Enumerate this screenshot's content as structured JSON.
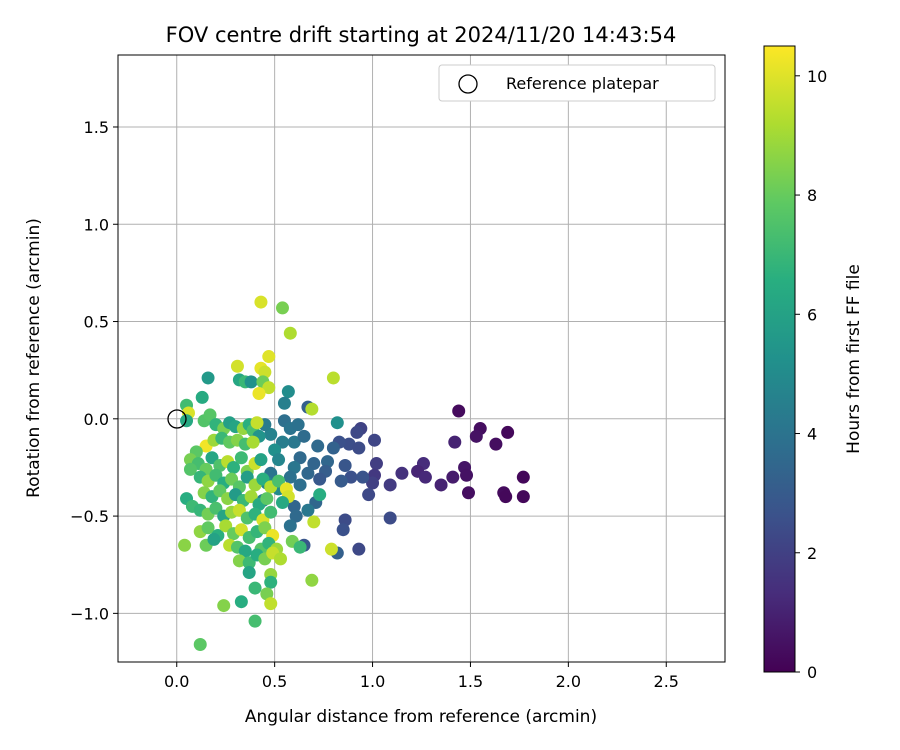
{
  "chart_data": {
    "type": "scatter",
    "title": "FOV centre drift starting at 2024/11/20 14:43:54",
    "xlabel": "Angular distance from reference (arcmin)",
    "ylabel": "Rotation from reference (arcmin)",
    "xlim": [
      -0.3,
      2.8
    ],
    "ylim": [
      -1.25,
      1.87
    ],
    "xticks": [
      0.0,
      0.5,
      1.0,
      1.5,
      2.0,
      2.5
    ],
    "xtick_labels": [
      "0.0",
      "0.5",
      "1.0",
      "1.5",
      "2.0",
      "2.5"
    ],
    "yticks": [
      -1.0,
      -0.5,
      0.0,
      0.5,
      1.0,
      1.5
    ],
    "ytick_labels": [
      "−1.0",
      "−0.5",
      "0.0",
      "0.5",
      "1.0",
      "1.5"
    ],
    "grid": true,
    "legend": {
      "position": "top-right",
      "entries": [
        "Reference platepar"
      ]
    },
    "reference_point": {
      "x": 0.0,
      "y": 0.0,
      "label": "Reference platepar"
    },
    "colorbar": {
      "label": "Hours from first FF file",
      "colormap": "viridis",
      "range": [
        0,
        10.5
      ],
      "ticks": [
        0,
        2,
        4,
        6,
        8,
        10
      ],
      "tick_labels": [
        "0",
        "2",
        "4",
        "6",
        "8",
        "10"
      ]
    },
    "points": [
      {
        "x": 1.44,
        "y": 0.04,
        "c": 0.3
      },
      {
        "x": 1.55,
        "y": -0.05,
        "c": 0.4
      },
      {
        "x": 1.53,
        "y": -0.09,
        "c": 0.5
      },
      {
        "x": 1.69,
        "y": -0.07,
        "c": 0.2
      },
      {
        "x": 1.63,
        "y": -0.13,
        "c": 0.4
      },
      {
        "x": 1.42,
        "y": -0.12,
        "c": 1.0
      },
      {
        "x": 1.47,
        "y": -0.25,
        "c": 0.6
      },
      {
        "x": 1.41,
        "y": -0.3,
        "c": 0.8
      },
      {
        "x": 1.48,
        "y": -0.29,
        "c": 0.5
      },
      {
        "x": 1.77,
        "y": -0.3,
        "c": 0.2
      },
      {
        "x": 1.35,
        "y": -0.34,
        "c": 1.0
      },
      {
        "x": 1.67,
        "y": -0.38,
        "c": 0.3
      },
      {
        "x": 1.68,
        "y": -0.4,
        "c": 0.2
      },
      {
        "x": 1.77,
        "y": -0.4,
        "c": 0.2
      },
      {
        "x": 1.49,
        "y": -0.38,
        "c": 0.4
      },
      {
        "x": 1.26,
        "y": -0.23,
        "c": 1.3
      },
      {
        "x": 1.23,
        "y": -0.27,
        "c": 1.1
      },
      {
        "x": 1.27,
        "y": -0.3,
        "c": 1.2
      },
      {
        "x": 1.15,
        "y": -0.28,
        "c": 1.5
      },
      {
        "x": 1.09,
        "y": -0.34,
        "c": 1.8
      },
      {
        "x": 1.02,
        "y": -0.23,
        "c": 1.9
      },
      {
        "x": 1.01,
        "y": -0.29,
        "c": 1.7
      },
      {
        "x": 1.0,
        "y": -0.33,
        "c": 2.0
      },
      {
        "x": 0.98,
        "y": -0.39,
        "c": 2.3
      },
      {
        "x": 1.09,
        "y": -0.51,
        "c": 2.4
      },
      {
        "x": 1.01,
        "y": -0.11,
        "c": 2.2
      },
      {
        "x": 0.94,
        "y": -0.05,
        "c": 2.1
      },
      {
        "x": 0.92,
        "y": -0.07,
        "c": 2.3
      },
      {
        "x": 0.88,
        "y": -0.13,
        "c": 2.5
      },
      {
        "x": 0.93,
        "y": -0.15,
        "c": 2.4
      },
      {
        "x": 0.83,
        "y": -0.12,
        "c": 2.6
      },
      {
        "x": 0.86,
        "y": -0.24,
        "c": 2.8
      },
      {
        "x": 0.89,
        "y": -0.3,
        "c": 2.6
      },
      {
        "x": 0.84,
        "y": -0.32,
        "c": 3.0
      },
      {
        "x": 0.95,
        "y": -0.3,
        "c": 2.7
      },
      {
        "x": 0.86,
        "y": -0.52,
        "c": 2.4
      },
      {
        "x": 0.85,
        "y": -0.57,
        "c": 2.6
      },
      {
        "x": 0.93,
        "y": -0.67,
        "c": 2.3
      },
      {
        "x": 0.82,
        "y": -0.69,
        "c": 3.2
      },
      {
        "x": 0.82,
        "y": -0.02,
        "c": 5.2
      },
      {
        "x": 0.8,
        "y": -0.15,
        "c": 3.3
      },
      {
        "x": 0.77,
        "y": -0.22,
        "c": 3.5
      },
      {
        "x": 0.76,
        "y": -0.27,
        "c": 3.1
      },
      {
        "x": 0.73,
        "y": -0.31,
        "c": 2.9
      },
      {
        "x": 0.7,
        "y": -0.23,
        "c": 3.4
      },
      {
        "x": 0.72,
        "y": -0.14,
        "c": 3.6
      },
      {
        "x": 0.71,
        "y": -0.43,
        "c": 3.5
      },
      {
        "x": 0.73,
        "y": -0.39,
        "c": 6.5
      },
      {
        "x": 0.67,
        "y": 0.06,
        "c": 3.2
      },
      {
        "x": 0.69,
        "y": 0.05,
        "c": 9.3
      },
      {
        "x": 0.8,
        "y": 0.21,
        "c": 9.4
      },
      {
        "x": 0.57,
        "y": 0.14,
        "c": 5.1
      },
      {
        "x": 0.55,
        "y": 0.08,
        "c": 4.5
      },
      {
        "x": 0.55,
        "y": -0.01,
        "c": 3.8
      },
      {
        "x": 0.58,
        "y": -0.05,
        "c": 4.0
      },
      {
        "x": 0.62,
        "y": -0.03,
        "c": 3.9
      },
      {
        "x": 0.6,
        "y": -0.12,
        "c": 4.2
      },
      {
        "x": 0.65,
        "y": -0.09,
        "c": 3.7
      },
      {
        "x": 0.63,
        "y": -0.2,
        "c": 3.6
      },
      {
        "x": 0.6,
        "y": -0.25,
        "c": 4.1
      },
      {
        "x": 0.58,
        "y": -0.3,
        "c": 3.9
      },
      {
        "x": 0.67,
        "y": -0.28,
        "c": 3.5
      },
      {
        "x": 0.63,
        "y": -0.34,
        "c": 3.8
      },
      {
        "x": 0.6,
        "y": -0.45,
        "c": 3.4
      },
      {
        "x": 0.67,
        "y": -0.47,
        "c": 4.2
      },
      {
        "x": 0.61,
        "y": -0.5,
        "c": 3.6
      },
      {
        "x": 0.58,
        "y": -0.55,
        "c": 3.9
      },
      {
        "x": 0.65,
        "y": -0.65,
        "c": 2.8
      },
      {
        "x": 0.54,
        "y": -0.12,
        "c": 4.4
      },
      {
        "x": 0.5,
        "y": -0.16,
        "c": 5.2
      },
      {
        "x": 0.48,
        "y": -0.08,
        "c": 4.6
      },
      {
        "x": 0.45,
        "y": -0.03,
        "c": 4.3
      },
      {
        "x": 0.52,
        "y": -0.21,
        "c": 4.8
      },
      {
        "x": 0.48,
        "y": -0.28,
        "c": 4.0
      },
      {
        "x": 0.46,
        "y": -0.33,
        "c": 4.7
      },
      {
        "x": 0.52,
        "y": -0.36,
        "c": 5.0
      },
      {
        "x": 0.44,
        "y": -0.42,
        "c": 4.5
      },
      {
        "x": 0.54,
        "y": 0.57,
        "c": 8.3
      },
      {
        "x": 0.43,
        "y": 0.6,
        "c": 9.9
      },
      {
        "x": 0.58,
        "y": 0.44,
        "c": 9.2
      },
      {
        "x": 0.47,
        "y": 0.32,
        "c": 10.0
      },
      {
        "x": 0.31,
        "y": 0.27,
        "c": 9.8
      },
      {
        "x": 0.43,
        "y": 0.26,
        "c": 10.1
      },
      {
        "x": 0.45,
        "y": 0.24,
        "c": 9.7
      },
      {
        "x": 0.32,
        "y": 0.2,
        "c": 6.2
      },
      {
        "x": 0.35,
        "y": 0.19,
        "c": 7.0
      },
      {
        "x": 0.38,
        "y": 0.19,
        "c": 5.3
      },
      {
        "x": 0.44,
        "y": 0.19,
        "c": 8.1
      },
      {
        "x": 0.47,
        "y": 0.16,
        "c": 9.5
      },
      {
        "x": 0.42,
        "y": 0.13,
        "c": 10.2
      },
      {
        "x": 0.16,
        "y": 0.21,
        "c": 5.6
      },
      {
        "x": 0.13,
        "y": 0.11,
        "c": 6.4
      },
      {
        "x": 0.05,
        "y": 0.07,
        "c": 7.2
      },
      {
        "x": 0.06,
        "y": 0.03,
        "c": 9.9
      },
      {
        "x": 0.14,
        "y": -0.01,
        "c": 7.6
      },
      {
        "x": 0.05,
        "y": -0.01,
        "c": 6.3
      },
      {
        "x": 0.17,
        "y": 0.02,
        "c": 7.7
      },
      {
        "x": 0.2,
        "y": -0.03,
        "c": 6.8
      },
      {
        "x": 0.24,
        "y": -0.05,
        "c": 8.3
      },
      {
        "x": 0.27,
        "y": -0.02,
        "c": 5.9
      },
      {
        "x": 0.3,
        "y": -0.04,
        "c": 6.1
      },
      {
        "x": 0.34,
        "y": -0.05,
        "c": 8.8
      },
      {
        "x": 0.37,
        "y": -0.03,
        "c": 6.6
      },
      {
        "x": 0.39,
        "y": -0.06,
        "c": 7.4
      },
      {
        "x": 0.41,
        "y": -0.02,
        "c": 9.6
      },
      {
        "x": 0.42,
        "y": -0.09,
        "c": 5.4
      },
      {
        "x": 0.15,
        "y": -0.14,
        "c": 10.3
      },
      {
        "x": 0.19,
        "y": -0.11,
        "c": 8.9
      },
      {
        "x": 0.23,
        "y": -0.1,
        "c": 7.0
      },
      {
        "x": 0.27,
        "y": -0.12,
        "c": 7.9
      },
      {
        "x": 0.31,
        "y": -0.11,
        "c": 8.5
      },
      {
        "x": 0.35,
        "y": -0.13,
        "c": 7.3
      },
      {
        "x": 0.39,
        "y": -0.12,
        "c": 9.1
      },
      {
        "x": 0.1,
        "y": -0.17,
        "c": 7.8
      },
      {
        "x": 0.07,
        "y": -0.21,
        "c": 8.3
      },
      {
        "x": 0.11,
        "y": -0.23,
        "c": 7.3
      },
      {
        "x": 0.15,
        "y": -0.26,
        "c": 8.0
      },
      {
        "x": 0.18,
        "y": -0.2,
        "c": 6.2
      },
      {
        "x": 0.22,
        "y": -0.24,
        "c": 7.5
      },
      {
        "x": 0.26,
        "y": -0.22,
        "c": 9.4
      },
      {
        "x": 0.29,
        "y": -0.25,
        "c": 6.7
      },
      {
        "x": 0.33,
        "y": -0.2,
        "c": 7.1
      },
      {
        "x": 0.36,
        "y": -0.27,
        "c": 8.4
      },
      {
        "x": 0.4,
        "y": -0.23,
        "c": 9.7
      },
      {
        "x": 0.43,
        "y": -0.21,
        "c": 6.0
      },
      {
        "x": 0.07,
        "y": -0.26,
        "c": 7.6
      },
      {
        "x": 0.12,
        "y": -0.3,
        "c": 6.9
      },
      {
        "x": 0.16,
        "y": -0.32,
        "c": 8.7
      },
      {
        "x": 0.2,
        "y": -0.29,
        "c": 7.2
      },
      {
        "x": 0.24,
        "y": -0.33,
        "c": 6.5
      },
      {
        "x": 0.28,
        "y": -0.31,
        "c": 8.1
      },
      {
        "x": 0.32,
        "y": -0.35,
        "c": 7.7
      },
      {
        "x": 0.36,
        "y": -0.3,
        "c": 5.8
      },
      {
        "x": 0.4,
        "y": -0.34,
        "c": 8.9
      },
      {
        "x": 0.44,
        "y": -0.31,
        "c": 6.6
      },
      {
        "x": 0.48,
        "y": -0.35,
        "c": 9.3
      },
      {
        "x": 0.52,
        "y": -0.32,
        "c": 7.4
      },
      {
        "x": 0.56,
        "y": -0.36,
        "c": 10.1
      },
      {
        "x": 0.57,
        "y": -0.4,
        "c": 9.8
      },
      {
        "x": 0.54,
        "y": -0.43,
        "c": 6.3
      },
      {
        "x": 0.14,
        "y": -0.38,
        "c": 8.5
      },
      {
        "x": 0.18,
        "y": -0.4,
        "c": 6.8
      },
      {
        "x": 0.22,
        "y": -0.37,
        "c": 7.9
      },
      {
        "x": 0.26,
        "y": -0.41,
        "c": 8.6
      },
      {
        "x": 0.3,
        "y": -0.39,
        "c": 5.7
      },
      {
        "x": 0.34,
        "y": -0.42,
        "c": 7.0
      },
      {
        "x": 0.38,
        "y": -0.4,
        "c": 9.0
      },
      {
        "x": 0.42,
        "y": -0.44,
        "c": 6.4
      },
      {
        "x": 0.46,
        "y": -0.41,
        "c": 7.8
      },
      {
        "x": 0.05,
        "y": -0.41,
        "c": 6.5
      },
      {
        "x": 0.08,
        "y": -0.45,
        "c": 7.1
      },
      {
        "x": 0.12,
        "y": -0.47,
        "c": 6.9
      },
      {
        "x": 0.16,
        "y": -0.49,
        "c": 8.2
      },
      {
        "x": 0.2,
        "y": -0.46,
        "c": 7.4
      },
      {
        "x": 0.24,
        "y": -0.5,
        "c": 6.1
      },
      {
        "x": 0.28,
        "y": -0.48,
        "c": 8.8
      },
      {
        "x": 0.32,
        "y": -0.47,
        "c": 9.6
      },
      {
        "x": 0.36,
        "y": -0.51,
        "c": 7.5
      },
      {
        "x": 0.4,
        "y": -0.49,
        "c": 6.7
      },
      {
        "x": 0.44,
        "y": -0.52,
        "c": 9.9
      },
      {
        "x": 0.48,
        "y": -0.48,
        "c": 7.2
      },
      {
        "x": 0.7,
        "y": -0.53,
        "c": 9.5
      },
      {
        "x": 0.12,
        "y": -0.58,
        "c": 8.7
      },
      {
        "x": 0.16,
        "y": -0.56,
        "c": 7.9
      },
      {
        "x": 0.21,
        "y": -0.6,
        "c": 6.6
      },
      {
        "x": 0.25,
        "y": -0.55,
        "c": 9.1
      },
      {
        "x": 0.29,
        "y": -0.59,
        "c": 8.0
      },
      {
        "x": 0.33,
        "y": -0.57,
        "c": 9.8
      },
      {
        "x": 0.37,
        "y": -0.61,
        "c": 7.3
      },
      {
        "x": 0.41,
        "y": -0.58,
        "c": 6.9
      },
      {
        "x": 0.45,
        "y": -0.56,
        "c": 8.4
      },
      {
        "x": 0.49,
        "y": -0.6,
        "c": 10.2
      },
      {
        "x": 0.04,
        "y": -0.65,
        "c": 8.6
      },
      {
        "x": 0.15,
        "y": -0.65,
        "c": 8.1
      },
      {
        "x": 0.19,
        "y": -0.62,
        "c": 6.0
      },
      {
        "x": 0.27,
        "y": -0.65,
        "c": 9.4
      },
      {
        "x": 0.31,
        "y": -0.66,
        "c": 7.6
      },
      {
        "x": 0.35,
        "y": -0.68,
        "c": 6.3
      },
      {
        "x": 0.43,
        "y": -0.67,
        "c": 7.7
      },
      {
        "x": 0.47,
        "y": -0.64,
        "c": 6.8
      },
      {
        "x": 0.51,
        "y": -0.67,
        "c": 8.9
      },
      {
        "x": 0.59,
        "y": -0.63,
        "c": 8.2
      },
      {
        "x": 0.63,
        "y": -0.66,
        "c": 7.0
      },
      {
        "x": 0.79,
        "y": -0.67,
        "c": 9.7
      },
      {
        "x": 0.32,
        "y": -0.73,
        "c": 8.5
      },
      {
        "x": 0.37,
        "y": -0.74,
        "c": 7.1
      },
      {
        "x": 0.41,
        "y": -0.7,
        "c": 6.5
      },
      {
        "x": 0.45,
        "y": -0.72,
        "c": 8.3
      },
      {
        "x": 0.49,
        "y": -0.69,
        "c": 9.6
      },
      {
        "x": 0.53,
        "y": -0.72,
        "c": 9.2
      },
      {
        "x": 0.37,
        "y": -0.79,
        "c": 6.1
      },
      {
        "x": 0.48,
        "y": -0.8,
        "c": 8.8
      },
      {
        "x": 0.48,
        "y": -0.84,
        "c": 6.7
      },
      {
        "x": 0.69,
        "y": -0.83,
        "c": 8.7
      },
      {
        "x": 0.4,
        "y": -0.87,
        "c": 7.0
      },
      {
        "x": 0.46,
        "y": -0.9,
        "c": 8.3
      },
      {
        "x": 0.48,
        "y": -0.95,
        "c": 9.5
      },
      {
        "x": 0.33,
        "y": -0.94,
        "c": 6.5
      },
      {
        "x": 0.24,
        "y": -0.96,
        "c": 8.5
      },
      {
        "x": 0.4,
        "y": -1.04,
        "c": 7.3
      },
      {
        "x": 0.12,
        "y": -1.16,
        "c": 7.8
      }
    ]
  }
}
